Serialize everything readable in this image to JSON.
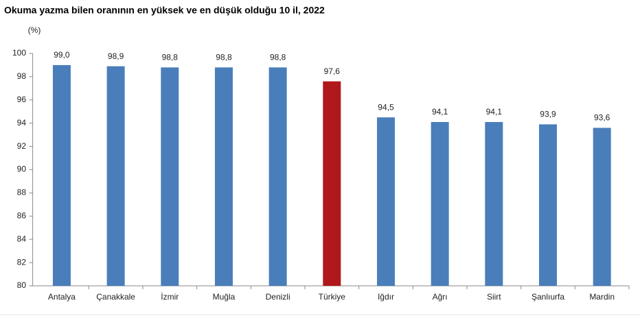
{
  "chart_data": {
    "type": "bar",
    "title": "Okuma yazma bilen oranının en yüksek ve en düşük olduğu 10 il, 2022",
    "y_label": "(%)",
    "categories": [
      "Antalya",
      "Çanakkale",
      "İzmir",
      "Muğla",
      "Denizli",
      "Türkiye",
      "Iğdır",
      "Ağrı",
      "Siirt",
      "Şanlıurfa",
      "Mardin"
    ],
    "values": [
      99.0,
      98.9,
      98.8,
      98.8,
      98.8,
      97.6,
      94.5,
      94.1,
      94.1,
      93.9,
      93.6
    ],
    "value_labels": [
      "99,0",
      "98,9",
      "98,8",
      "98,8",
      "98,8",
      "97,6",
      "94,5",
      "94,1",
      "94,1",
      "93,9",
      "93,6"
    ],
    "colors": [
      "#4a7ebb",
      "#4a7ebb",
      "#4a7ebb",
      "#4a7ebb",
      "#4a7ebb",
      "#b0181b",
      "#4a7ebb",
      "#4a7ebb",
      "#4a7ebb",
      "#4a7ebb",
      "#4a7ebb"
    ],
    "ylim": [
      80,
      100
    ],
    "yticks": [
      80,
      82,
      84,
      86,
      88,
      90,
      92,
      94,
      96,
      98,
      100
    ],
    "grid": false
  }
}
